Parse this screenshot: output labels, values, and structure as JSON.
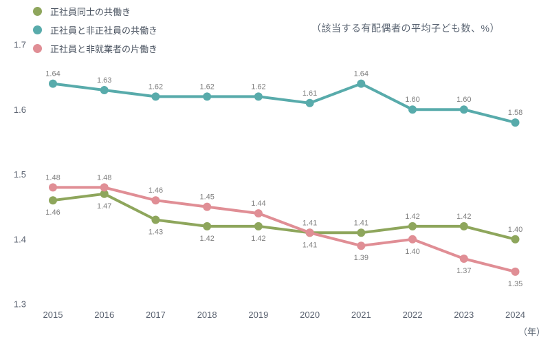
{
  "chart_data": {
    "type": "line",
    "title": "（該当する有配偶者の平均子ども数、%）",
    "x_unit_label": "（年）",
    "categories": [
      "2015",
      "2016",
      "2017",
      "2018",
      "2019",
      "2020",
      "2021",
      "2022",
      "2023",
      "2024"
    ],
    "y_ticks": [
      "1.7",
      "1.6",
      "1.5",
      "1.4",
      "1.3"
    ],
    "ylim": [
      1.3,
      1.7
    ],
    "grid": false,
    "legend_position": "top-left",
    "value_decimals": 2,
    "series": [
      {
        "name": "正社員同士の共働き",
        "color": "#8ea65c",
        "values": [
          1.46,
          1.47,
          1.43,
          1.42,
          1.42,
          1.41,
          1.41,
          1.42,
          1.42,
          1.4
        ],
        "label_side": [
          "below",
          "below",
          "below",
          "below",
          "below",
          "above",
          "above",
          "above",
          "above",
          "above"
        ]
      },
      {
        "name": "正社員と非正社員の共働き",
        "color": "#58abab",
        "values": [
          1.64,
          1.63,
          1.62,
          1.62,
          1.62,
          1.61,
          1.64,
          1.6,
          1.6,
          1.58
        ],
        "label_side": [
          "above",
          "above",
          "above",
          "above",
          "above",
          "above",
          "above",
          "above",
          "above",
          "above"
        ]
      },
      {
        "name": "正社員と非就業者の片働き",
        "color": "#e08e95",
        "values": [
          1.48,
          1.48,
          1.46,
          1.45,
          1.44,
          1.41,
          1.39,
          1.4,
          1.37,
          1.35
        ],
        "label_side": [
          "above",
          "above",
          "above",
          "above",
          "above",
          "below",
          "below",
          "below",
          "below",
          "below"
        ]
      }
    ]
  }
}
